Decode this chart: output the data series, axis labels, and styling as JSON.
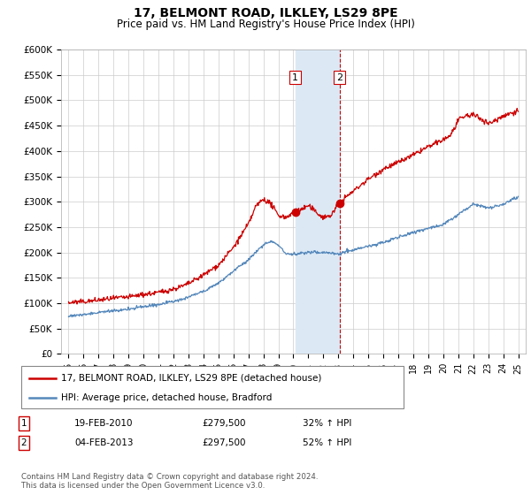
{
  "title": "17, BELMONT ROAD, ILKLEY, LS29 8PE",
  "subtitle": "Price paid vs. HM Land Registry's House Price Index (HPI)",
  "ylabel_ticks": [
    "£0",
    "£50K",
    "£100K",
    "£150K",
    "£200K",
    "£250K",
    "£300K",
    "£350K",
    "£400K",
    "£450K",
    "£500K",
    "£550K",
    "£600K"
  ],
  "ytick_values": [
    0,
    50000,
    100000,
    150000,
    200000,
    250000,
    300000,
    350000,
    400000,
    450000,
    500000,
    550000,
    600000
  ],
  "ylim": [
    0,
    600000
  ],
  "red_color": "#cc0000",
  "blue_color": "#5588bb",
  "highlight_color": "#dce9f5",
  "vline_color": "#cc0000",
  "legend_entries": [
    "17, BELMONT ROAD, ILKLEY, LS29 8PE (detached house)",
    "HPI: Average price, detached house, Bradford"
  ],
  "annotation1": {
    "label": "1",
    "date": "19-FEB-2010",
    "price": "£279,500",
    "hpi": "32% ↑ HPI"
  },
  "annotation2": {
    "label": "2",
    "date": "04-FEB-2013",
    "price": "£297,500",
    "hpi": "52% ↑ HPI"
  },
  "footer": "Contains HM Land Registry data © Crown copyright and database right 2024.\nThis data is licensed under the Open Government Licence v3.0.",
  "sale1_year": 2010.13,
  "sale2_year": 2013.09,
  "sale1_price": 279500,
  "sale2_price": 297500,
  "background_color": "#ffffff",
  "red_base_points_x": [
    1995,
    1996,
    1997,
    1998,
    1999,
    2000,
    2001,
    2002,
    2003,
    2004,
    2005,
    2006,
    2007,
    2007.5,
    2008,
    2008.5,
    2009,
    2009.5,
    2010,
    2010.13,
    2010.5,
    2011,
    2011.5,
    2012,
    2012.5,
    2013,
    2013.09,
    2014,
    2015,
    2016,
    2017,
    2018,
    2019,
    2020,
    2020.5,
    2021,
    2021.5,
    2022,
    2022.5,
    2023,
    2023.5,
    2024,
    2024.5,
    2025
  ],
  "red_base_points_y": [
    100000,
    103000,
    107000,
    110000,
    113000,
    118000,
    122000,
    128000,
    138000,
    155000,
    175000,
    210000,
    255000,
    290000,
    305000,
    295000,
    272000,
    268000,
    278000,
    279500,
    283000,
    290000,
    278000,
    268000,
    272000,
    293000,
    297500,
    320000,
    345000,
    365000,
    378000,
    392000,
    408000,
    422000,
    432000,
    460000,
    470000,
    472000,
    465000,
    455000,
    462000,
    470000,
    475000,
    480000
  ],
  "blue_base_points_x": [
    1995,
    1996,
    1997,
    1998,
    1999,
    2000,
    2001,
    2002,
    2003,
    2004,
    2005,
    2006,
    2007,
    2008,
    2008.5,
    2009,
    2009.5,
    2010,
    2011,
    2012,
    2013,
    2014,
    2015,
    2016,
    2017,
    2018,
    2019,
    2020,
    2021,
    2022,
    2023,
    2024,
    2025
  ],
  "blue_base_points_y": [
    75000,
    78000,
    82000,
    85000,
    88000,
    93000,
    97000,
    103000,
    112000,
    123000,
    140000,
    163000,
    185000,
    215000,
    222000,
    215000,
    198000,
    196000,
    200000,
    200000,
    198000,
    205000,
    212000,
    220000,
    230000,
    240000,
    248000,
    255000,
    275000,
    295000,
    288000,
    295000,
    310000
  ]
}
